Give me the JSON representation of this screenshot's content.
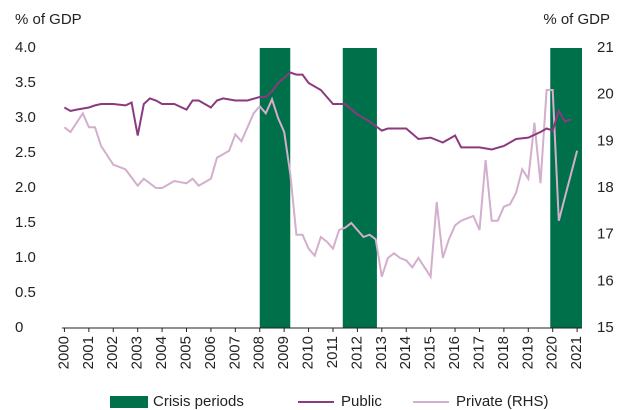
{
  "chart_data": {
    "type": "line",
    "y_label": "% of GDP",
    "y2_label": "% of GDP",
    "xlim": [
      1999.9,
      2021.2
    ],
    "xticks": [
      2000,
      2001,
      2002,
      2003,
      2004,
      2005,
      2006,
      2007,
      2008,
      2009,
      2010,
      2011,
      2012,
      2013,
      2014,
      2015,
      2016,
      2017,
      2018,
      2019,
      2020,
      2021
    ],
    "ylim": [
      0,
      4
    ],
    "yticks": [
      0,
      {
        "value": 0.5,
        "label": "0.5"
      },
      {
        "value": 1,
        "label": "1.0"
      },
      1.5,
      {
        "value": 2,
        "label": "2.0"
      },
      2.5,
      {
        "value": 3,
        "label": "3.0"
      },
      3.5,
      {
        "value": 4,
        "label": "4.0"
      }
    ],
    "y2lim": [
      15,
      21
    ],
    "y2ticks": [
      15,
      16,
      17,
      18,
      19,
      20,
      21
    ],
    "bands": {
      "name": "Crisis periods",
      "color": "#00704a",
      "ranges": [
        [
          2008,
          2009.25
        ],
        [
          2011.4,
          2012.8
        ],
        [
          2019.9,
          2021.2
        ]
      ]
    },
    "series": [
      {
        "name": "Public",
        "color": "#8b3a7e",
        "x": [
          2000,
          2000.25,
          2000.5,
          2001,
          2001.25,
          2001.5,
          2002,
          2002.5,
          2002.75,
          2003,
          2003.25,
          2003.5,
          2003.75,
          2004,
          2004.5,
          2005,
          2005.25,
          2005.5,
          2006,
          2006.25,
          2006.5,
          2007,
          2007.5,
          2008,
          2008.25,
          2008.5,
          2008.75,
          2009.25,
          2009.5,
          2009.75,
          2010,
          2010.5,
          2011,
          2011.5,
          2012,
          2012.5,
          2013,
          2013.25,
          2013.5,
          2014,
          2014.5,
          2015,
          2015.5,
          2016,
          2016.25,
          2016.75,
          2017,
          2017.5,
          2018,
          2018.5,
          2019,
          2019.5,
          2019.75,
          2020,
          2020.25,
          2020.5,
          2020.75
        ],
        "values": [
          3.15,
          3.1,
          3.12,
          3.15,
          3.18,
          3.2,
          3.2,
          3.18,
          3.22,
          2.75,
          3.2,
          3.28,
          3.25,
          3.2,
          3.2,
          3.12,
          3.25,
          3.25,
          3.15,
          3.25,
          3.28,
          3.25,
          3.25,
          3.3,
          3.3,
          3.38,
          3.5,
          3.65,
          3.62,
          3.62,
          3.5,
          3.4,
          3.2,
          3.2,
          3.05,
          2.95,
          2.82,
          2.85,
          2.85,
          2.85,
          2.7,
          2.72,
          2.65,
          2.75,
          2.58,
          2.58,
          2.58,
          2.55,
          2.6,
          2.7,
          2.72,
          2.8,
          2.85,
          2.82,
          3.1,
          2.95,
          2.98
        ]
      },
      {
        "name": "Private (RHS)",
        "color": "#d4aecd",
        "axis": "y2",
        "x": [
          2000,
          2000.25,
          2000.75,
          2001,
          2001.25,
          2001.5,
          2002,
          2002.5,
          2003,
          2003.25,
          2003.75,
          2004,
          2004.5,
          2005,
          2005.25,
          2005.5,
          2006,
          2006.25,
          2006.75,
          2007,
          2007.25,
          2007.75,
          2008,
          2008.25,
          2008.5,
          2008.75,
          2009,
          2009.25,
          2009.5,
          2009.75,
          2010,
          2010.25,
          2010.5,
          2010.75,
          2011,
          2011.25,
          2011.5,
          2011.75,
          2012,
          2012.25,
          2012.5,
          2012.75,
          2013,
          2013.25,
          2013.5,
          2013.75,
          2014,
          2014.25,
          2014.5,
          2014.75,
          2015,
          2015.25,
          2015.5,
          2015.75,
          2016,
          2016.25,
          2016.5,
          2016.75,
          2017,
          2017.25,
          2017.5,
          2017.75,
          2018,
          2018.25,
          2018.5,
          2018.75,
          2019,
          2019.25,
          2019.5,
          2019.75,
          2020,
          2020.25,
          2020.5,
          2020.75,
          2021
        ],
        "values": [
          19.3,
          19.2,
          19.6,
          19.3,
          19.3,
          18.9,
          18.5,
          18.4,
          18.05,
          18.2,
          18.0,
          18.0,
          18.15,
          18.1,
          18.2,
          18.05,
          18.2,
          18.65,
          18.8,
          19.15,
          19.0,
          19.6,
          19.75,
          19.6,
          19.9,
          19.5,
          19.2,
          18.3,
          17.0,
          17.0,
          16.7,
          16.55,
          16.95,
          16.85,
          16.7,
          17.1,
          17.15,
          17.25,
          17.1,
          16.95,
          17.0,
          16.9,
          16.1,
          16.5,
          16.6,
          16.5,
          16.45,
          16.3,
          16.5,
          16.3,
          16.1,
          17.7,
          16.5,
          16.9,
          17.2,
          17.3,
          17.35,
          17.4,
          17.1,
          18.6,
          17.3,
          17.3,
          17.6,
          17.65,
          17.9,
          18.4,
          18.2,
          19.4,
          18.1,
          20.1,
          20.1,
          17.3,
          17.8,
          18.3,
          18.8
        ]
      }
    ]
  }
}
